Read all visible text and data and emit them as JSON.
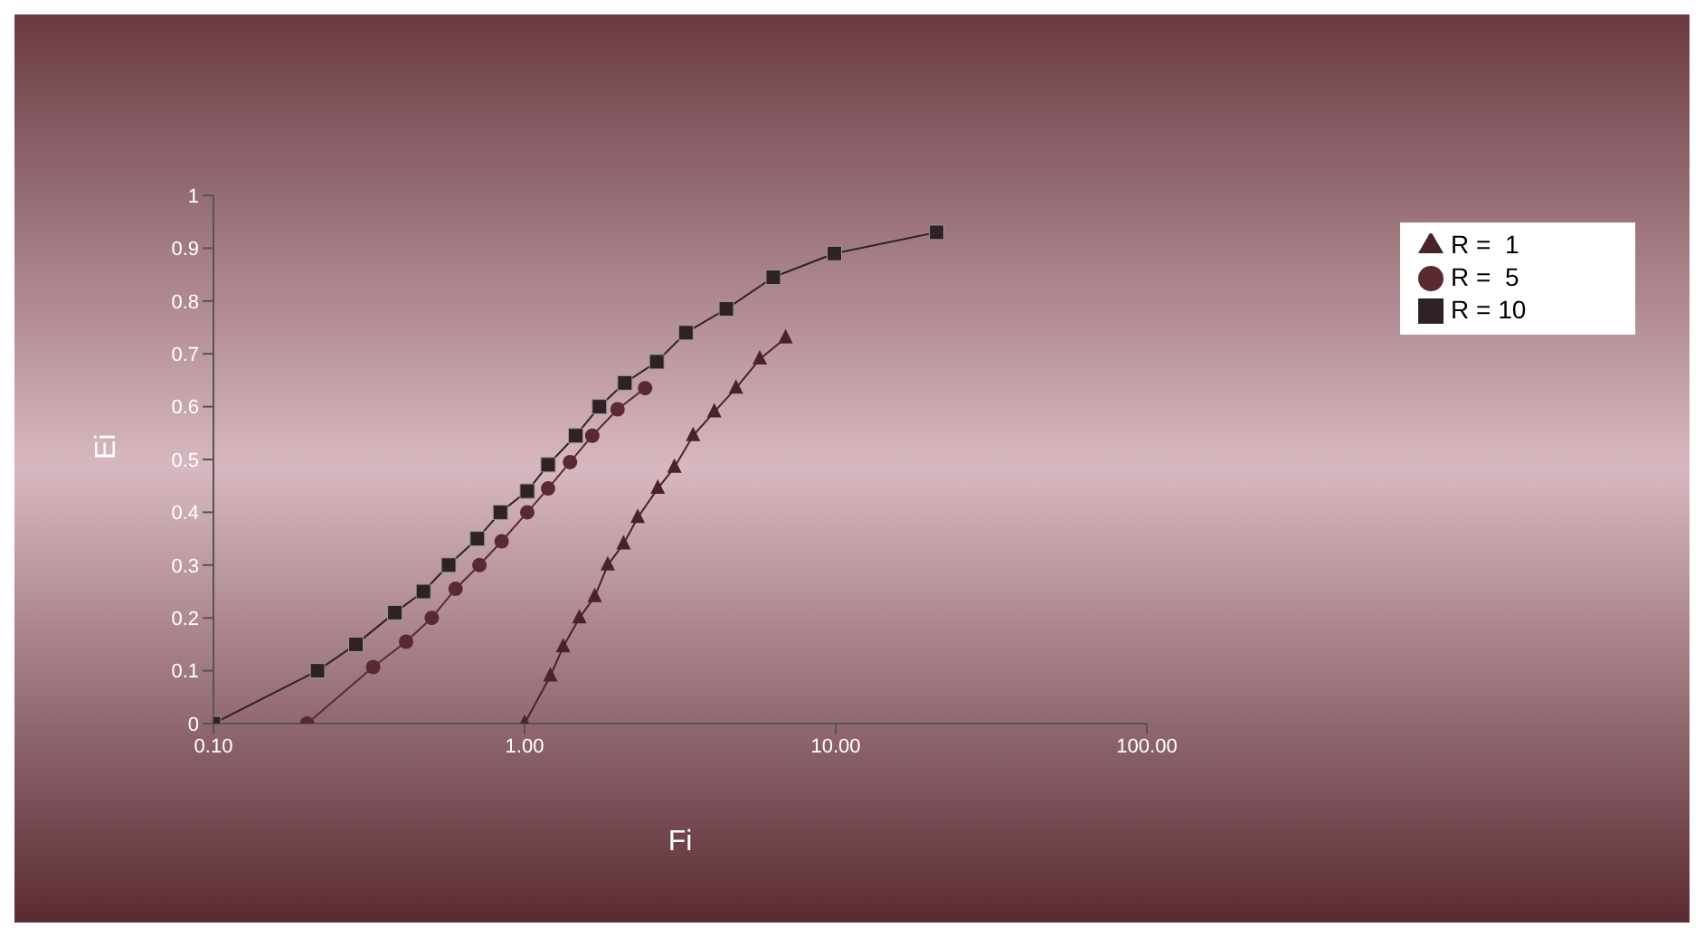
{
  "chart_data": {
    "type": "line",
    "xlabel": "Fi",
    "ylabel": "Ei",
    "log": "x",
    "xlim": [
      0.1,
      100
    ],
    "ylim": [
      0,
      1
    ],
    "xticks": [
      {
        "value": 0.1,
        "label": "0.10"
      },
      {
        "value": 1,
        "label": "1.00"
      },
      {
        "value": 10,
        "label": "10.00"
      },
      {
        "value": 100,
        "label": "100.00"
      }
    ],
    "yticks": [
      0,
      0.1,
      0.2,
      0.3,
      0.4,
      0.5,
      0.6,
      0.7,
      0.8,
      0.9,
      1
    ],
    "legend": "top right",
    "grid": false,
    "series": [
      {
        "name": "R = 10",
        "color": "#2e2224",
        "marker": "square",
        "x": [
          0.1,
          0.216,
          0.287,
          0.383,
          0.473,
          0.57,
          0.705,
          0.836,
          1.02,
          1.19,
          1.46,
          1.74,
          2.1,
          2.66,
          3.3,
          4.45,
          6.3,
          9.9,
          21.1
        ],
        "values": [
          0,
          0.1,
          0.15,
          0.21,
          0.25,
          0.3,
          0.35,
          0.4,
          0.44,
          0.49,
          0.545,
          0.6,
          0.645,
          0.685,
          0.74,
          0.785,
          0.845,
          0.89,
          0.93
        ]
      },
      {
        "name": "R =  5",
        "color": "#5a2a30",
        "marker": "circle",
        "x": [
          0.2,
          0.326,
          0.416,
          0.503,
          0.6,
          0.716,
          0.844,
          1.02,
          1.19,
          1.4,
          1.65,
          1.99,
          2.44
        ],
        "values": [
          0,
          0.107,
          0.155,
          0.2,
          0.255,
          0.3,
          0.345,
          0.4,
          0.445,
          0.495,
          0.545,
          0.595,
          0.635
        ]
      },
      {
        "name": "R =  1",
        "color": "#4a2228",
        "marker": "triangle",
        "x": [
          1,
          1.21,
          1.33,
          1.5,
          1.68,
          1.85,
          2.08,
          2.31,
          2.68,
          3.03,
          3.48,
          4.07,
          4.78,
          5.7,
          6.9
        ],
        "values": [
          0,
          0.09,
          0.145,
          0.2,
          0.24,
          0.3,
          0.34,
          0.39,
          0.445,
          0.485,
          0.545,
          0.59,
          0.635,
          0.69,
          0.73
        ]
      }
    ]
  }
}
